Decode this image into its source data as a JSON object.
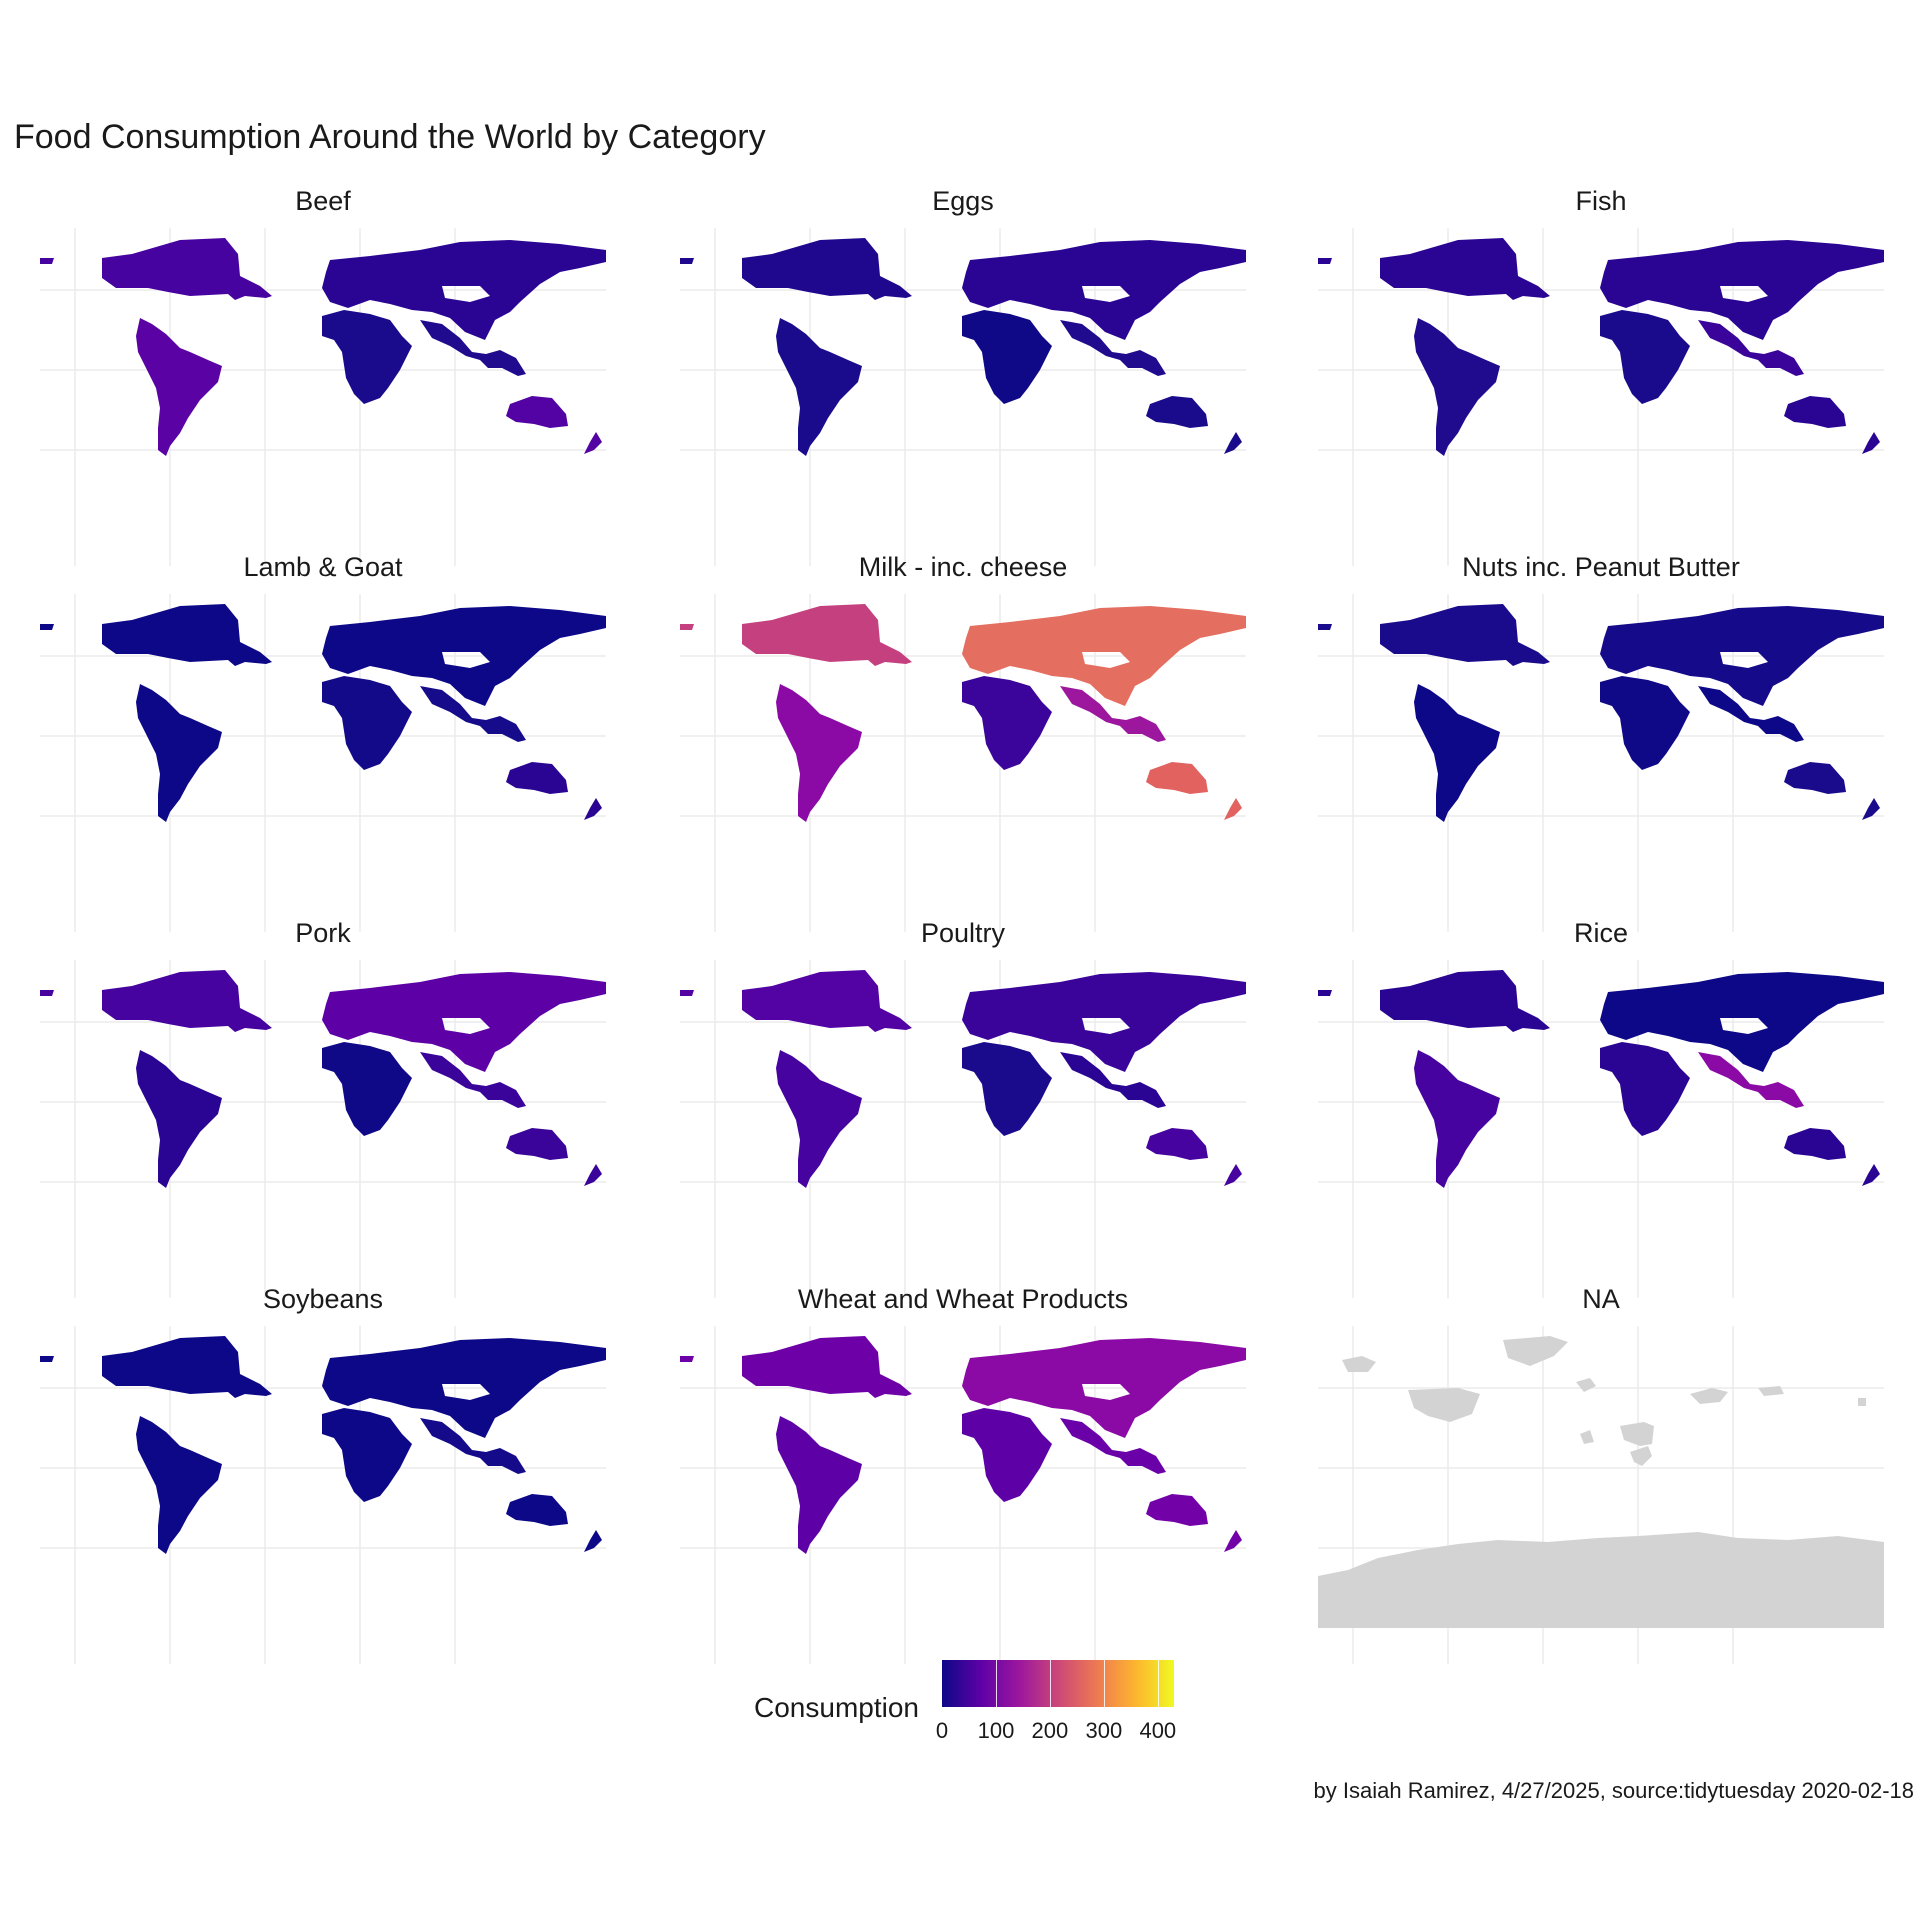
{
  "title": "Food Consumption Around the World by Category",
  "chart_data": {
    "type": "choropleth-map",
    "facets": [
      {
        "label": "Beef",
        "colors": {
          "na": "#46039f",
          "sa": "#5a02a3",
          "eu": "#2a0593",
          "af": "#1a0b8c",
          "as": "#200a8e",
          "au": "#5302a3"
        }
      },
      {
        "label": "Eggs",
        "colors": {
          "na": "#20088e",
          "sa": "#190b8b",
          "eu": "#2a0593",
          "af": "#0f0987",
          "as": "#200a8e",
          "au": "#190b8b"
        }
      },
      {
        "label": "Fish",
        "colors": {
          "na": "#2a0593",
          "sa": "#200a8e",
          "eu": "#2a0593",
          "af": "#1a0b8c",
          "as": "#3a049a",
          "au": "#2a0593"
        }
      },
      {
        "label": "Lamb & Goat",
        "colors": {
          "na": "#0d0887",
          "sa": "#0d0887",
          "eu": "#0d0887",
          "af": "#130a89",
          "as": "#160b8a",
          "au": "#2a0593"
        }
      },
      {
        "label": "Milk - inc. cheese",
        "colors": {
          "na": "#c5407e",
          "sa": "#8b0aa5",
          "eu": "#e46e5f",
          "af": "#3b049a",
          "as": "#9c179e",
          "au": "#e1625f"
        }
      },
      {
        "label": "Nuts inc. Peanut Butter",
        "colors": {
          "na": "#1a0b8c",
          "sa": "#0d0887",
          "eu": "#150a89",
          "af": "#0f0987",
          "as": "#0d0887",
          "au": "#1a0b8c"
        }
      },
      {
        "label": "Pork",
        "colors": {
          "na": "#46039f",
          "sa": "#2a0593",
          "eu": "#5d01a6",
          "af": "#0f0987",
          "as": "#3a049a",
          "au": "#3a049a"
        }
      },
      {
        "label": "Poultry",
        "colors": {
          "na": "#5302a3",
          "sa": "#46039f",
          "eu": "#3a049a",
          "af": "#1a0b8c",
          "as": "#2a0593",
          "au": "#46039f"
        }
      },
      {
        "label": "Rice",
        "colors": {
          "na": "#2a0593",
          "sa": "#46039f",
          "eu": "#0d0887",
          "af": "#2a0593",
          "as": "#8b0aa5",
          "au": "#2a0593"
        }
      },
      {
        "label": "Soybeans",
        "colors": {
          "na": "#0d0887",
          "sa": "#0d0887",
          "eu": "#0d0887",
          "af": "#0d0887",
          "as": "#150a89",
          "au": "#0d0887"
        }
      },
      {
        "label": "Wheat and Wheat Products",
        "colors": {
          "na": "#6e00a8",
          "sa": "#5d01a6",
          "eu": "#8b0aa5",
          "af": "#5d01a6",
          "as": "#6a00a8",
          "au": "#7201a8"
        }
      },
      {
        "label": "NA",
        "colors": {
          "na": "#d3d3d3",
          "sa": "#d3d3d3",
          "eu": "#d3d3d3",
          "af": "#d3d3d3",
          "as": "#d3d3d3",
          "au": "#d3d3d3"
        }
      }
    ],
    "legend": {
      "title": "Consumption",
      "ticks": [
        "0",
        "100",
        "200",
        "300",
        "400"
      ],
      "tick_values": [
        0,
        100,
        200,
        300,
        400
      ],
      "range": [
        0,
        430
      ],
      "palette": "plasma",
      "placement": "bottom"
    },
    "na_color": "#d3d3d3",
    "grid": true
  },
  "caption": "by Isaiah Ramirez, 4/27/2025, source:tidytuesday 2020-02-18"
}
